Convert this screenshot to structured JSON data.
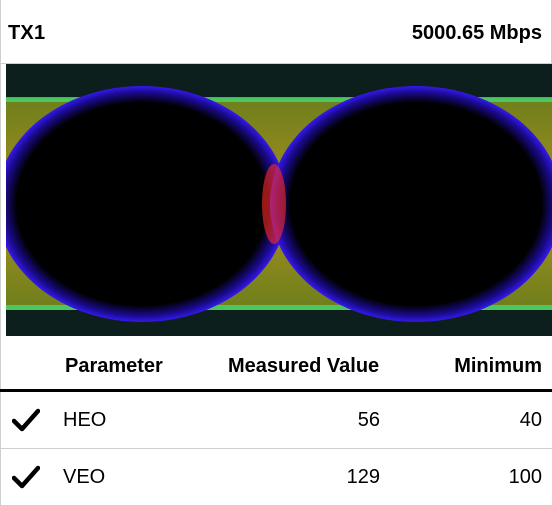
{
  "header": {
    "channel": "TX1",
    "rate": "5000.65 Mbps"
  },
  "table": {
    "columns": [
      "Parameter",
      "Measured Value",
      "Minimum"
    ],
    "rows": [
      {
        "status": "check-icon",
        "parameter": "HEO",
        "measured": "56",
        "minimum": "40"
      },
      {
        "status": "check-icon",
        "parameter": "VEO",
        "measured": "129",
        "minimum": "100"
      }
    ]
  },
  "colors": {
    "eye_background": "#0d1f1c",
    "eye_band": "#9a8a1e",
    "eye_inner": "#000000",
    "eye_edge_blue": "#3a1cff",
    "eye_edge_red": "#ff2a2a",
    "rail_green": "#43d36a",
    "divider": "#cfcfcf"
  }
}
